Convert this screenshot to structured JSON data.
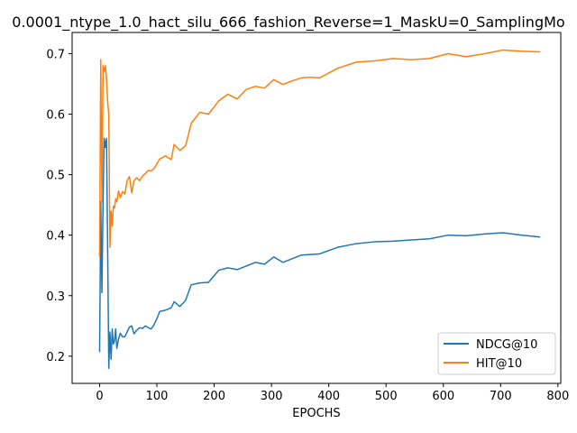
{
  "chart_data": {
    "type": "line",
    "title": "0.0001_ntype_1.0_hact_silu_666_fashion_Reverse=1_MaskU=0_SamplingMo",
    "xlabel": "EPOCHS",
    "ylabel": "",
    "xlim": [
      -48,
      805
    ],
    "ylim": [
      0.155,
      0.735
    ],
    "xticks": [
      0,
      100,
      200,
      300,
      400,
      500,
      600,
      700,
      800
    ],
    "yticks": [
      0.2,
      0.3,
      0.4,
      0.5,
      0.6,
      0.7
    ],
    "ytick_labels": [
      "0.2",
      "0.3",
      "0.4",
      "0.5",
      "0.6",
      "0.7"
    ],
    "grid": false,
    "legend_position": "lower-right",
    "series": [
      {
        "name": "NDCG@10",
        "color": "#1f77b4",
        "x": [
          0,
          2,
          4,
          6,
          8,
          10,
          12,
          14,
          16,
          18,
          20,
          22,
          24,
          26,
          28,
          30,
          33,
          36,
          40,
          44,
          48,
          52,
          56,
          60,
          65,
          70,
          75,
          80,
          85,
          90,
          95,
          100,
          105,
          115,
          125,
          130,
          140,
          150,
          160,
          175,
          190,
          208,
          224,
          240,
          256,
          272,
          288,
          304,
          320,
          336,
          352,
          368,
          384,
          416,
          448,
          480,
          512,
          544,
          576,
          608,
          640,
          672,
          704,
          736,
          768
        ],
        "y": [
          0.208,
          0.455,
          0.305,
          0.455,
          0.56,
          0.545,
          0.56,
          0.38,
          0.18,
          0.24,
          0.195,
          0.245,
          0.22,
          0.225,
          0.245,
          0.213,
          0.228,
          0.238,
          0.232,
          0.232,
          0.24,
          0.248,
          0.25,
          0.237,
          0.243,
          0.247,
          0.246,
          0.25,
          0.247,
          0.245,
          0.252,
          0.262,
          0.274,
          0.276,
          0.28,
          0.29,
          0.282,
          0.292,
          0.318,
          0.321,
          0.322,
          0.342,
          0.346,
          0.343,
          0.349,
          0.355,
          0.352,
          0.364,
          0.355,
          0.361,
          0.367,
          0.368,
          0.369,
          0.38,
          0.386,
          0.389,
          0.39,
          0.392,
          0.394,
          0.4,
          0.399,
          0.402,
          0.404,
          0.4,
          0.397
        ]
      },
      {
        "name": "HIT@10",
        "color": "#ff7f0e",
        "x": [
          0,
          2,
          4,
          6,
          8,
          10,
          12,
          14,
          16,
          18,
          20,
          22,
          24,
          26,
          28,
          30,
          33,
          36,
          40,
          44,
          48,
          52,
          56,
          60,
          65,
          70,
          75,
          80,
          85,
          90,
          95,
          100,
          105,
          115,
          125,
          130,
          140,
          150,
          160,
          175,
          190,
          208,
          224,
          240,
          256,
          272,
          288,
          304,
          320,
          336,
          352,
          368,
          384,
          416,
          448,
          480,
          512,
          544,
          576,
          608,
          640,
          672,
          704,
          736,
          768
        ],
        "y": [
          0.365,
          0.69,
          0.455,
          0.68,
          0.67,
          0.68,
          0.66,
          0.62,
          0.6,
          0.38,
          0.44,
          0.415,
          0.448,
          0.445,
          0.46,
          0.455,
          0.473,
          0.462,
          0.472,
          0.468,
          0.49,
          0.497,
          0.47,
          0.49,
          0.495,
          0.49,
          0.498,
          0.502,
          0.507,
          0.506,
          0.51,
          0.518,
          0.526,
          0.531,
          0.525,
          0.55,
          0.54,
          0.548,
          0.585,
          0.603,
          0.6,
          0.622,
          0.633,
          0.625,
          0.641,
          0.646,
          0.643,
          0.657,
          0.649,
          0.655,
          0.66,
          0.661,
          0.66,
          0.676,
          0.686,
          0.688,
          0.692,
          0.69,
          0.692,
          0.7,
          0.695,
          0.7,
          0.706,
          0.704,
          0.703
        ]
      }
    ]
  }
}
